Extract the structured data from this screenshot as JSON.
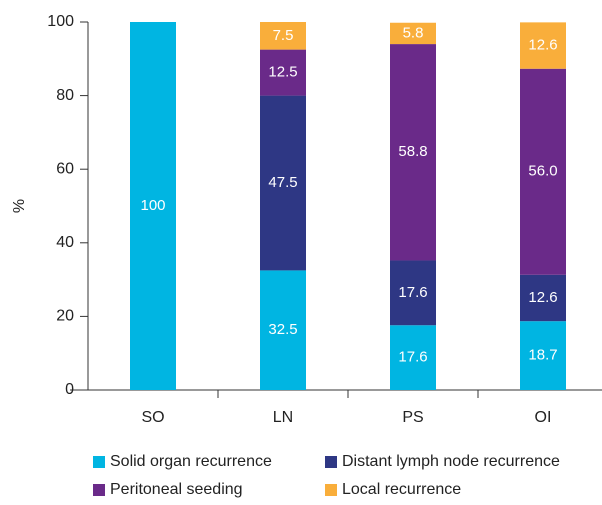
{
  "chart_data": {
    "type": "stacked_bar",
    "y_label": "%",
    "categories": [
      "SO",
      "LN",
      "PS",
      "OI"
    ],
    "series": [
      {
        "name": "Solid organ recurrence",
        "color": "#00b5e2",
        "values": [
          100,
          32.5,
          17.6,
          18.7
        ]
      },
      {
        "name": "Distant lymph node recurrence",
        "color": "#2e3784",
        "values": [
          0,
          47.5,
          17.6,
          12.6
        ]
      },
      {
        "name": "Peritoneal seeding",
        "color": "#6a2a89",
        "values": [
          0,
          12.5,
          58.8,
          56.0
        ],
        "value_labels": [
          null,
          "12.5",
          "58.8",
          "56.0"
        ]
      },
      {
        "name": "Local recurrence",
        "color": "#f9ae3b",
        "values": [
          0,
          7.5,
          5.8,
          12.6
        ]
      }
    ],
    "ylim": [
      0,
      100
    ],
    "yticks": [
      0,
      20,
      40,
      60,
      80,
      100
    ],
    "grid": false
  }
}
